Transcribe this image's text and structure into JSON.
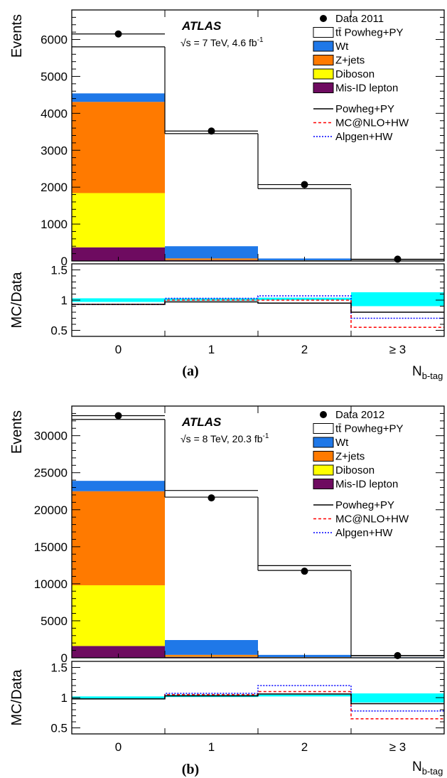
{
  "colors": {
    "wt": "#1f78e8",
    "zjets": "#ff7a00",
    "diboson": "#ffff00",
    "misid": "#6e0b60",
    "uncertainty_band": "#00ffff",
    "powheg_line": "#000000",
    "mcatnlo_line": "#ff0000",
    "alpgen_line": "#0000ff"
  },
  "shared": {
    "x_ticks": [
      "0",
      "1",
      "2",
      "≥ 3"
    ],
    "y_label_top": "Events",
    "y_label_ratio": "MC/Data",
    "x_label_main": "N",
    "x_label_sub": "b-tag",
    "atlas_label": "ATLAS",
    "legend": {
      "data_suffix": "",
      "ttbar": "tt̄ Powheg+PY",
      "wt": "Wt",
      "zjets": "Z+jets",
      "diboson": "Diboson",
      "misid": "Mis-ID lepton",
      "powheg": "Powheg+PY",
      "mcatnlo": "MC@NLO+HW",
      "alpgen": "Alpgen+HW"
    },
    "ratio_ticks": [
      "0.5",
      "1",
      "1.5"
    ]
  },
  "chart_data": [
    {
      "type": "bar",
      "panel_label": "(a)",
      "data_label": "Data 2011",
      "energy_text": "√s = 7 TeV, 4.6 fb",
      "lumi_exponent": "-1",
      "categories": [
        "0",
        "1",
        "2",
        "≥ 3"
      ],
      "ylim": [
        0,
        6800
      ],
      "y_ticks": [
        0,
        1000,
        2000,
        3000,
        4000,
        5000,
        6000
      ],
      "ratio_ylim": [
        0.4,
        1.6
      ],
      "data": [
        6150,
        3520,
        2070,
        50
      ],
      "stack": {
        "misid": [
          370,
          30,
          10,
          2
        ],
        "diboson": [
          1470,
          10,
          3,
          1
        ],
        "zjets": [
          2470,
          30,
          5,
          1
        ],
        "wt": [
          230,
          330,
          50,
          5
        ]
      },
      "ttbar_total": {
        "powheg": [
          5800,
          3450,
          1960,
          40
        ],
        "upper": [
          6150,
          3520,
          2070,
          48
        ]
      },
      "ratio": {
        "powheg": [
          0.93,
          0.97,
          0.95,
          0.8
        ],
        "mcatnlo": [
          0.93,
          1.0,
          1.0,
          0.55
        ],
        "alpgen": [
          0.93,
          1.03,
          1.07,
          0.7
        ],
        "band_low": [
          0.97,
          0.99,
          1.0,
          0.9
        ],
        "band_high": [
          1.03,
          1.03,
          1.04,
          1.13
        ]
      }
    },
    {
      "type": "bar",
      "panel_label": "(b)",
      "data_label": "Data 2012",
      "energy_text": "√s = 8 TeV, 20.3 fb",
      "lumi_exponent": "-1",
      "categories": [
        "0",
        "1",
        "2",
        "≥ 3"
      ],
      "ylim": [
        0,
        34000
      ],
      "y_ticks": [
        0,
        5000,
        10000,
        15000,
        20000,
        25000,
        30000
      ],
      "ratio_ylim": [
        0.4,
        1.6
      ],
      "data": [
        32700,
        21600,
        11700,
        300
      ],
      "stack": {
        "misid": [
          1600,
          150,
          50,
          10
        ],
        "diboson": [
          8200,
          70,
          15,
          5
        ],
        "zjets": [
          12700,
          180,
          30,
          5
        ],
        "wt": [
          1400,
          2000,
          300,
          50
        ]
      },
      "ttbar_total": {
        "powheg": [
          32200,
          21700,
          11800,
          270
        ],
        "upper": [
          32700,
          22600,
          12450,
          310
        ]
      },
      "ratio": {
        "powheg": [
          0.98,
          1.03,
          1.06,
          0.9
        ],
        "mcatnlo": [
          0.98,
          1.05,
          1.1,
          0.65
        ],
        "alpgen": [
          0.98,
          1.07,
          1.2,
          0.78
        ],
        "band_low": [
          0.97,
          1.01,
          1.02,
          0.92
        ],
        "band_high": [
          1.02,
          1.05,
          1.05,
          1.07
        ]
      }
    }
  ]
}
